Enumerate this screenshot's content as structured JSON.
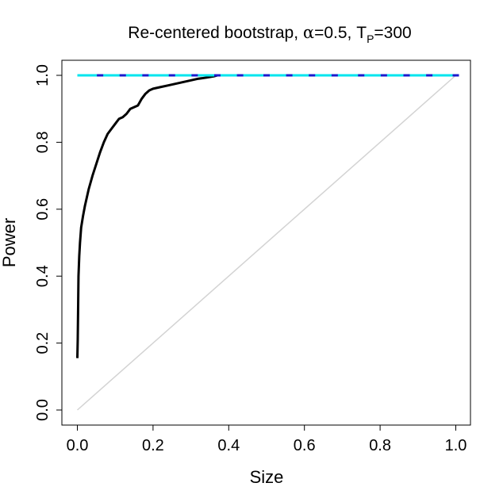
{
  "chart_data": {
    "type": "line",
    "title_prefix": "Re-centered bootstrap, ",
    "title_alpha": "α",
    "title_alpha_value": "=0.5, ",
    "title_T": "T",
    "title_sub": "P",
    "title_T_value": "=300",
    "xlabel": "Size",
    "ylabel": "Power",
    "xlim": [
      0,
      1
    ],
    "ylim": [
      0,
      1
    ],
    "xticks": [
      "0.0",
      "0.2",
      "0.4",
      "0.6",
      "0.8",
      "1.0"
    ],
    "yticks": [
      "0.0",
      "0.2",
      "0.4",
      "0.6",
      "0.8",
      "1.0"
    ],
    "grid": false,
    "series": [
      {
        "color": "#000000",
        "style": "solid",
        "x": [
          0.0,
          0.001,
          0.002,
          0.003,
          0.005,
          0.007,
          0.01,
          0.015,
          0.02,
          0.03,
          0.04,
          0.05,
          0.06,
          0.07,
          0.08,
          0.09,
          0.1,
          0.11,
          0.12,
          0.13,
          0.14,
          0.15,
          0.16,
          0.17,
          0.18,
          0.19,
          0.2,
          0.22,
          0.24,
          0.26,
          0.28,
          0.3,
          0.32,
          0.34,
          0.36,
          0.37,
          1.0
        ],
        "y": [
          0.155,
          0.21,
          0.3,
          0.4,
          0.46,
          0.5,
          0.545,
          0.58,
          0.61,
          0.66,
          0.7,
          0.735,
          0.77,
          0.8,
          0.825,
          0.84,
          0.855,
          0.87,
          0.875,
          0.885,
          0.9,
          0.905,
          0.91,
          0.93,
          0.945,
          0.955,
          0.96,
          0.965,
          0.97,
          0.975,
          0.98,
          0.985,
          0.99,
          0.993,
          0.997,
          1.0,
          1.0
        ]
      },
      {
        "color": "#00e5ee",
        "style": "solid",
        "marker_color": "#1a1acc",
        "marker_x": [
          0.06,
          0.12,
          0.18,
          0.25,
          0.31,
          0.37,
          0.43,
          0.5,
          0.56,
          0.62,
          0.68,
          0.75,
          0.81,
          0.87,
          0.93,
          1.0
        ],
        "x": [
          0.0,
          1.0
        ],
        "y": [
          1.0,
          1.0
        ]
      },
      {
        "color": "#d3d3d3",
        "style": "solid",
        "x": [
          0.0,
          1.0
        ],
        "y": [
          0.0,
          1.0
        ]
      }
    ]
  }
}
